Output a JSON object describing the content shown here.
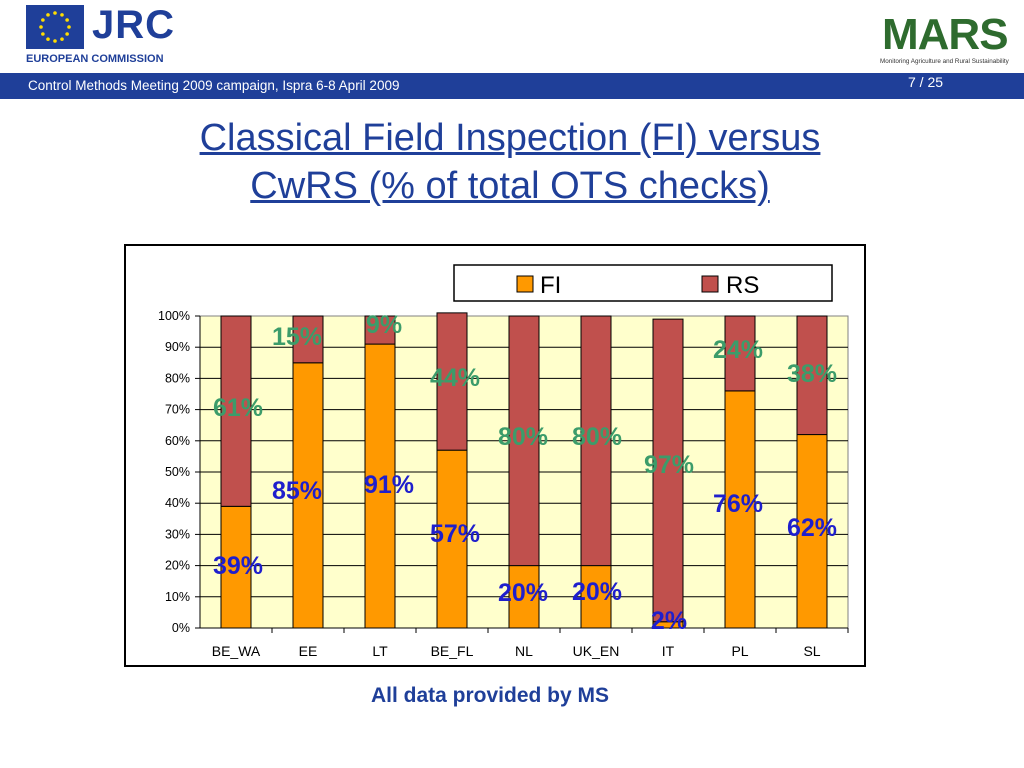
{
  "header": {
    "jrc_logo_text": "JRC",
    "org_name": "EUROPEAN COMMISSION",
    "band_text": "Control Methods Meeting 2009 campaign, Ispra 6-8 April 2009",
    "page_number": "7 / 25",
    "mars_logo_text": "MARS",
    "mars_subtitle": "Monitoring Agriculture and Rural Sustainability"
  },
  "slide": {
    "title_line1": "Classical Field Inspection (FI) versus",
    "title_line2": "CwRS (% of total OTS checks)",
    "footnote": "All data provided by MS"
  },
  "colors": {
    "brand_blue": "#1f3f99",
    "fi_bar": "#ff9900",
    "rs_bar": "#c0504d",
    "plot_bg": "#ffffcc",
    "fi_label": "#1f1fcc",
    "rs_label": "#3c9c6a"
  },
  "chart_data": {
    "type": "bar",
    "stacked": true,
    "categories": [
      "BE_WA",
      "EE",
      "LT",
      "BE_FL",
      "NL",
      "UK_EN",
      "IT",
      "PL",
      "SL"
    ],
    "series": [
      {
        "name": "FI",
        "values": [
          39,
          85,
          91,
          57,
          20,
          20,
          2,
          76,
          62
        ],
        "labels": [
          "39%",
          "85%",
          "91%",
          "57%",
          "20%",
          "20%",
          "2%",
          "76%",
          "62%"
        ]
      },
      {
        "name": "RS",
        "values": [
          61,
          15,
          9,
          44,
          80,
          80,
          97,
          24,
          38
        ],
        "labels": [
          "61%",
          "15%",
          "9%",
          "44%",
          "80%",
          "80%",
          "97%",
          "24%",
          "38%"
        ]
      }
    ],
    "y_ticks": [
      "0%",
      "10%",
      "20%",
      "30%",
      "40%",
      "50%",
      "60%",
      "70%",
      "80%",
      "90%",
      "100%"
    ],
    "ylim": [
      0,
      100
    ],
    "grid": true,
    "legend_position": "top"
  }
}
